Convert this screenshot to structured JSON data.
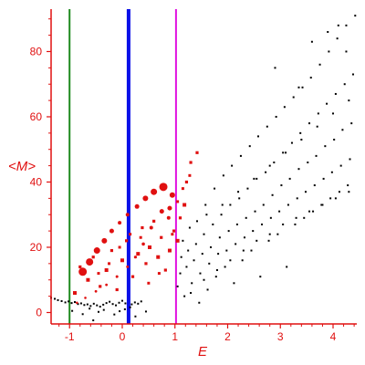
{
  "chart_data": {
    "type": "scatter",
    "title": "",
    "xlabel": "E",
    "ylabel": "<M>",
    "xlim": [
      -1.35,
      4.45
    ],
    "ylim": [
      -3.5,
      93
    ],
    "xticks": [
      -1,
      0,
      1,
      2,
      3,
      4
    ],
    "xtick_labels": [
      "-1",
      "0",
      "1",
      "2",
      "3",
      "4"
    ],
    "yticks": [
      0,
      20,
      40,
      60,
      80
    ],
    "ytick_labels": [
      "0",
      "20",
      "40",
      "60",
      "80"
    ],
    "grid": false,
    "colors": {
      "axis": "#e01010",
      "text": "#e01010",
      "black": "#000000",
      "red": "#e01010"
    },
    "vlines": [
      {
        "x": -1.0,
        "color": "#1e8a1e",
        "width": "thin"
      },
      {
        "x": 0.12,
        "color": "#0a10e8",
        "width": "thick"
      },
      {
        "x": 1.02,
        "color": "#e010e0",
        "width": "thin"
      }
    ],
    "series": [
      {
        "color": "#000000",
        "marker": "dot",
        "points": [
          [
            -1.35,
            4.5
          ],
          [
            -1.28,
            4.2
          ],
          [
            -1.22,
            3.8
          ],
          [
            -1.15,
            3.5
          ],
          [
            -1.08,
            3.1
          ],
          [
            -1.02,
            3.4
          ],
          [
            -0.96,
            2.9
          ],
          [
            -0.9,
            3.2
          ],
          [
            -0.84,
            2.6
          ],
          [
            -0.78,
            2.8
          ],
          [
            -0.72,
            2.3
          ],
          [
            -0.66,
            2.5
          ],
          [
            -0.6,
            2.0
          ],
          [
            -0.54,
            2.7
          ],
          [
            -0.48,
            2.2
          ],
          [
            -0.42,
            1.8
          ],
          [
            -0.36,
            2.4
          ],
          [
            -0.3,
            2.9
          ],
          [
            -0.24,
            3.3
          ],
          [
            -0.18,
            2.6
          ],
          [
            -0.12,
            2.2
          ],
          [
            -0.06,
            3.0
          ],
          [
            0.0,
            3.6
          ],
          [
            0.06,
            2.8
          ],
          [
            0.18,
            2.5
          ],
          [
            0.24,
            3.1
          ],
          [
            0.3,
            2.7
          ],
          [
            0.36,
            3.4
          ],
          [
            -0.95,
            0.5
          ],
          [
            -0.75,
            -0.5
          ],
          [
            -0.55,
            -2.4
          ],
          [
            -0.35,
            0.8
          ],
          [
            -0.15,
            -0.6
          ],
          [
            0.05,
            1.0
          ],
          [
            0.25,
            -1.2
          ],
          [
            0.45,
            0.3
          ],
          [
            -0.62,
            1.2
          ],
          [
            -0.45,
            0.2
          ],
          [
            -0.05,
            0.4
          ],
          [
            0.15,
            1.6
          ],
          [
            1.05,
            8
          ],
          [
            1.1,
            12
          ],
          [
            1.12,
            17
          ],
          [
            1.15,
            22
          ],
          [
            1.18,
            5
          ],
          [
            1.22,
            14
          ],
          [
            1.25,
            19
          ],
          [
            1.28,
            26
          ],
          [
            1.32,
            9
          ],
          [
            1.36,
            16
          ],
          [
            1.4,
            21
          ],
          [
            1.42,
            28
          ],
          [
            1.46,
            3
          ],
          [
            1.48,
            12
          ],
          [
            1.52,
            18
          ],
          [
            1.55,
            24
          ],
          [
            1.58,
            33
          ],
          [
            1.62,
            7
          ],
          [
            1.65,
            15
          ],
          [
            1.68,
            20
          ],
          [
            1.72,
            27
          ],
          [
            1.75,
            38
          ],
          [
            1.78,
            11
          ],
          [
            1.82,
            18
          ],
          [
            1.85,
            23
          ],
          [
            1.88,
            30
          ],
          [
            1.92,
            42
          ],
          [
            1.95,
            14
          ],
          [
            1.98,
            19
          ],
          [
            2.02,
            25
          ],
          [
            2.05,
            33
          ],
          [
            2.08,
            45
          ],
          [
            2.12,
            9
          ],
          [
            2.15,
            21
          ],
          [
            2.18,
            27
          ],
          [
            2.22,
            35
          ],
          [
            2.25,
            48
          ],
          [
            2.28,
            16
          ],
          [
            2.32,
            23
          ],
          [
            2.35,
            29
          ],
          [
            2.38,
            38
          ],
          [
            2.42,
            51
          ],
          [
            2.45,
            19
          ],
          [
            2.48,
            25
          ],
          [
            2.52,
            31
          ],
          [
            2.55,
            41
          ],
          [
            2.58,
            54
          ],
          [
            2.62,
            11
          ],
          [
            2.65,
            27
          ],
          [
            2.68,
            33
          ],
          [
            2.72,
            43
          ],
          [
            2.75,
            57
          ],
          [
            2.78,
            22
          ],
          [
            2.82,
            29
          ],
          [
            2.85,
            36
          ],
          [
            2.88,
            46
          ],
          [
            2.92,
            60
          ],
          [
            2.95,
            24
          ],
          [
            2.98,
            31
          ],
          [
            3.02,
            39
          ],
          [
            3.05,
            49
          ],
          [
            3.08,
            63
          ],
          [
            3.12,
            14
          ],
          [
            3.15,
            33
          ],
          [
            3.18,
            41
          ],
          [
            3.22,
            52
          ],
          [
            3.25,
            66
          ],
          [
            3.28,
            27
          ],
          [
            3.32,
            35
          ],
          [
            3.35,
            44
          ],
          [
            3.38,
            55
          ],
          [
            3.42,
            69
          ],
          [
            3.45,
            29
          ],
          [
            3.48,
            37
          ],
          [
            3.52,
            46
          ],
          [
            3.55,
            58
          ],
          [
            3.58,
            72
          ],
          [
            3.62,
            31
          ],
          [
            3.65,
            39
          ],
          [
            3.68,
            48
          ],
          [
            3.72,
            61
          ],
          [
            3.75,
            76
          ],
          [
            3.78,
            33
          ],
          [
            3.82,
            41
          ],
          [
            3.85,
            51
          ],
          [
            3.88,
            64
          ],
          [
            3.92,
            80
          ],
          [
            3.95,
            35
          ],
          [
            3.98,
            43
          ],
          [
            4.02,
            53
          ],
          [
            4.05,
            67
          ],
          [
            4.08,
            84
          ],
          [
            4.12,
            37
          ],
          [
            4.15,
            45
          ],
          [
            4.18,
            56
          ],
          [
            4.22,
            70
          ],
          [
            4.25,
            88
          ],
          [
            4.28,
            39
          ],
          [
            4.32,
            47
          ],
          [
            4.35,
            58
          ],
          [
            4.38,
            73
          ],
          [
            4.42,
            91
          ],
          [
            1.3,
            6
          ],
          [
            1.55,
            10
          ],
          [
            1.8,
            13
          ],
          [
            2.05,
            16
          ],
          [
            2.3,
            19
          ],
          [
            2.55,
            22
          ],
          [
            2.8,
            24
          ],
          [
            3.05,
            27
          ],
          [
            3.3,
            29
          ],
          [
            3.55,
            31
          ],
          [
            3.8,
            33
          ],
          [
            4.05,
            35
          ],
          [
            4.3,
            37
          ],
          [
            1.6,
            30
          ],
          [
            1.9,
            33
          ],
          [
            2.2,
            37
          ],
          [
            2.5,
            41
          ],
          [
            2.8,
            45
          ],
          [
            3.1,
            49
          ],
          [
            3.4,
            53
          ],
          [
            3.7,
            57
          ],
          [
            4.0,
            61
          ],
          [
            4.3,
            65
          ],
          [
            2.9,
            75
          ],
          [
            3.35,
            69
          ],
          [
            3.6,
            83
          ],
          [
            3.9,
            86
          ],
          [
            4.1,
            88
          ],
          [
            4.25,
            80
          ]
        ]
      },
      {
        "color": "#e01010",
        "marker": "circle",
        "points": [
          [
            -0.75,
            12.5,
            4.5
          ],
          [
            -0.62,
            15.5,
            4
          ],
          [
            -0.48,
            19,
            3.5
          ],
          [
            -0.34,
            22,
            3
          ],
          [
            -0.2,
            25,
            2.5
          ],
          [
            -0.05,
            27.5,
            2
          ],
          [
            0.1,
            30,
            2
          ],
          [
            0.28,
            32.5,
            2.5
          ],
          [
            0.44,
            35,
            3
          ],
          [
            0.6,
            37,
            3.5
          ],
          [
            0.78,
            38.5,
            4.5
          ],
          [
            0.95,
            36,
            3
          ],
          [
            0.75,
            31,
            2.5
          ],
          [
            0.55,
            26,
            2
          ],
          [
            0.4,
            21,
            1.8
          ],
          [
            0.25,
            17,
            1.6
          ],
          [
            0.1,
            14,
            1.5
          ],
          [
            -0.1,
            11,
            1.5
          ],
          [
            -0.3,
            8.5,
            1.4
          ],
          [
            -0.5,
            6.5,
            1.4
          ],
          [
            -0.7,
            4.5,
            1.3
          ],
          [
            -0.86,
            3,
            1.3
          ],
          [
            0.9,
            32,
            2.5
          ],
          [
            0.88,
            29,
            2
          ]
        ]
      },
      {
        "color": "#e01010",
        "marker": "square",
        "points": [
          [
            -0.9,
            6,
            2
          ],
          [
            -0.8,
            14,
            1.6
          ],
          [
            -0.65,
            10,
            2
          ],
          [
            -0.55,
            17,
            1.6
          ],
          [
            -0.42,
            8,
            1.6
          ],
          [
            -0.3,
            13,
            2
          ],
          [
            -0.2,
            19,
            1.6
          ],
          [
            -0.1,
            7,
            1.6
          ],
          [
            0.0,
            16,
            2
          ],
          [
            0.08,
            22,
            1.6
          ],
          [
            0.2,
            11,
            1.6
          ],
          [
            0.3,
            18,
            2
          ],
          [
            0.38,
            26,
            1.6
          ],
          [
            0.45,
            15,
            1.6
          ],
          [
            0.52,
            20,
            2
          ],
          [
            0.6,
            28,
            1.6
          ],
          [
            0.68,
            17,
            2
          ],
          [
            0.74,
            23,
            1.6
          ],
          [
            0.82,
            13,
            1.6
          ],
          [
            0.9,
            19,
            2
          ],
          [
            0.98,
            25,
            1.6
          ],
          [
            1.05,
            22,
            2
          ],
          [
            1.1,
            29,
            1.6
          ],
          [
            1.18,
            33,
            2
          ],
          [
            1.22,
            40,
            1.6
          ],
          [
            1.3,
            46,
            1.6
          ],
          [
            1.42,
            49,
            1.6
          ],
          [
            1.28,
            42,
            1.5
          ],
          [
            1.15,
            38,
            1.5
          ],
          [
            1.05,
            34,
            1.5
          ],
          [
            0.95,
            24,
            1.5
          ],
          [
            0.7,
            12,
            1.5
          ],
          [
            0.5,
            9,
            1.5
          ],
          [
            0.35,
            23,
            1.5
          ],
          [
            0.15,
            24,
            1.5
          ],
          [
            -0.05,
            20,
            1.5
          ],
          [
            -0.25,
            15,
            1.5
          ],
          [
            -0.45,
            12,
            1.5
          ]
        ]
      }
    ]
  }
}
